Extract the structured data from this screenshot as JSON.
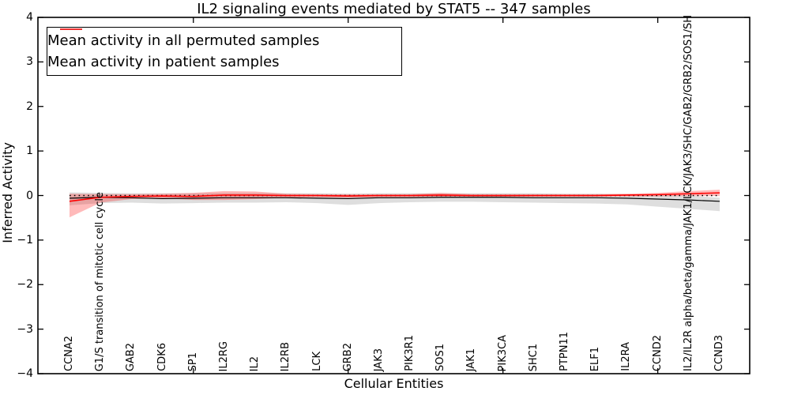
{
  "title": "IL2 signaling events mediated by STAT5 -- 347 samples",
  "xlabel": "Cellular Entities",
  "ylabel": "Inferred Activity",
  "legend": [
    {
      "label": "Mean activity in all permuted samples",
      "color": "#000000",
      "line_width": 1.2
    },
    {
      "label": "Mean activity in patient samples",
      "color": "#ff0000",
      "line_width": 1.6
    }
  ],
  "chart_data": {
    "type": "line",
    "title": "IL2 signaling events mediated by STAT5 -- 347 samples",
    "xlabel": "Cellular Entities",
    "ylabel": "Inferred Activity",
    "ylim": [
      -4,
      4
    ],
    "yticks": [
      4,
      3,
      2,
      1,
      0,
      -1,
      -2,
      -3,
      -4
    ],
    "x_major_tick_indices": [
      4,
      9,
      14,
      19
    ],
    "grid": false,
    "legend_position": "upper left",
    "categories": [
      "CCNA2",
      "G1/S transition of mitotic cell cycle",
      "GAB2",
      "CDK6",
      "SP1",
      "IL2RG",
      "IL2",
      "IL2RB",
      "LCK",
      "GRB2",
      "JAK3",
      "PIK3R1",
      "SOS1",
      "JAK1",
      "PIK3CA",
      "SHC1",
      "PTPN11",
      "ELF1",
      "IL2RA",
      "CCND2",
      "IL2/IL2R alpha/beta/gamma/JAK1/LCK/JAK3/SHC/GAB2/GRB2/SOS1/SH",
      "CCND3"
    ],
    "series": [
      {
        "name": "Mean activity in all permuted samples",
        "color": "#000000",
        "band_color": "rgba(0,0,0,0.13)",
        "line_width": 1.2,
        "values": [
          -0.06,
          -0.04,
          -0.05,
          -0.07,
          -0.06,
          -0.05,
          -0.05,
          -0.05,
          -0.06,
          -0.07,
          -0.05,
          -0.05,
          -0.04,
          -0.04,
          -0.04,
          -0.05,
          -0.05,
          -0.05,
          -0.06,
          -0.08,
          -0.1,
          -0.13
        ],
        "band_upper": [
          0.07,
          0.06,
          0.05,
          0.05,
          0.05,
          0.06,
          0.06,
          0.05,
          0.05,
          0.04,
          0.05,
          0.05,
          0.05,
          0.05,
          0.05,
          0.05,
          0.04,
          0.04,
          0.03,
          0.02,
          0.0,
          -0.05
        ],
        "band_lower": [
          -0.22,
          -0.17,
          -0.16,
          -0.18,
          -0.17,
          -0.16,
          -0.16,
          -0.15,
          -0.17,
          -0.21,
          -0.17,
          -0.15,
          -0.14,
          -0.14,
          -0.15,
          -0.16,
          -0.17,
          -0.18,
          -0.2,
          -0.25,
          -0.3,
          -0.35
        ]
      },
      {
        "name": "Mean activity in patient samples",
        "color": "#ff0000",
        "band_color": "rgba(255,0,0,0.27)",
        "line_width": 1.6,
        "values": [
          -0.13,
          -0.04,
          -0.02,
          -0.01,
          -0.02,
          0.01,
          0.01,
          0.0,
          0.0,
          -0.01,
          0.0,
          0.0,
          0.01,
          0.0,
          0.0,
          0.0,
          0.0,
          0.0,
          0.01,
          0.02,
          0.04,
          0.06
        ],
        "band_upper": [
          0.04,
          0.03,
          0.03,
          0.04,
          0.06,
          0.1,
          0.09,
          0.04,
          0.03,
          0.03,
          0.03,
          0.03,
          0.06,
          0.03,
          0.03,
          0.03,
          0.03,
          0.03,
          0.04,
          0.06,
          0.1,
          0.13
        ],
        "band_lower": [
          -0.49,
          -0.16,
          -0.08,
          -0.06,
          -0.1,
          -0.1,
          -0.08,
          -0.05,
          -0.04,
          -0.05,
          -0.04,
          -0.04,
          -0.03,
          -0.03,
          -0.03,
          -0.03,
          -0.03,
          -0.03,
          -0.02,
          -0.02,
          -0.01,
          -0.01
        ]
      }
    ],
    "zero_reference_line": {
      "value": 0,
      "style": "dotted",
      "color": "#000000"
    }
  }
}
